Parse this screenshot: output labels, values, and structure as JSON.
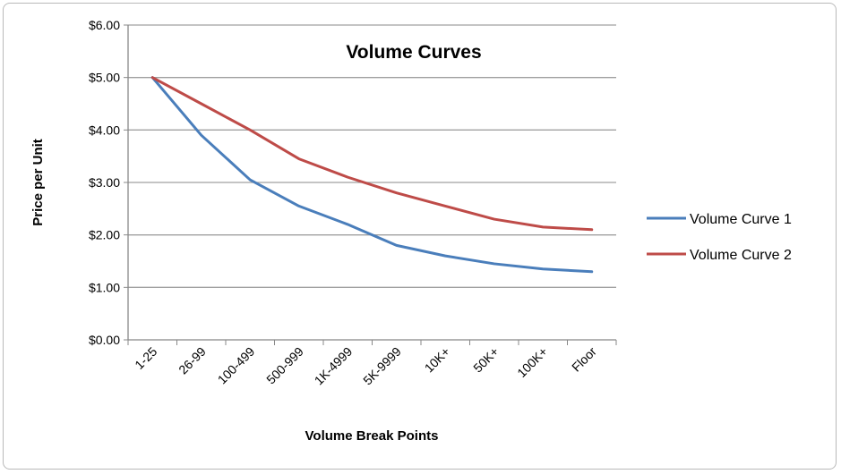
{
  "chart_data": {
    "type": "line",
    "title": "Volume Curves",
    "xlabel": "Volume Break Points",
    "ylabel": "Price per Unit",
    "categories": [
      "1-25",
      "26-99",
      "100-499",
      "500-999",
      "1K-4999",
      "5K-9999",
      "10K+",
      "50K+",
      "100K+",
      "Floor"
    ],
    "ylim": [
      0,
      6
    ],
    "yticks": [
      "$0.00",
      "$1.00",
      "$2.00",
      "$3.00",
      "$4.00",
      "$5.00",
      "$6.00"
    ],
    "grid": true,
    "legend_position": "right",
    "series": [
      {
        "name": "Volume Curve 1",
        "color": "#4a7ebb",
        "values": [
          5.0,
          3.9,
          3.05,
          2.55,
          2.2,
          1.8,
          1.6,
          1.45,
          1.35,
          1.3
        ]
      },
      {
        "name": "Volume Curve 2",
        "color": "#be4b48",
        "values": [
          5.0,
          4.5,
          4.0,
          3.45,
          3.1,
          2.8,
          2.55,
          2.3,
          2.15,
          2.1
        ]
      }
    ]
  }
}
